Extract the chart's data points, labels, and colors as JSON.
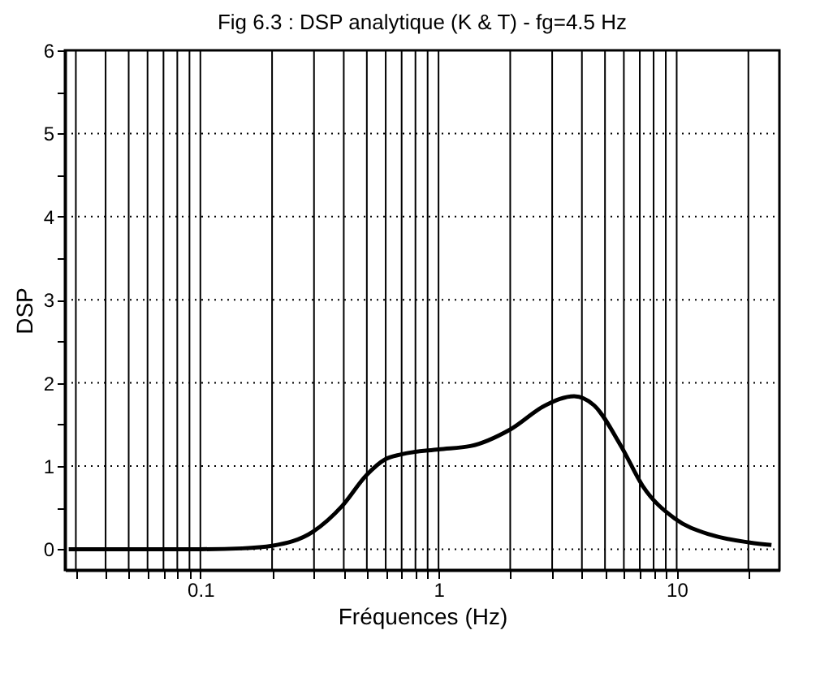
{
  "chart_data": {
    "type": "line",
    "title": "Fig 6.3 : DSP analytique (K & T) -  fg=4.5 Hz",
    "xlabel": "Fréquences (Hz)",
    "ylabel": "DSP",
    "log": "x",
    "grid": true,
    "marker": "none",
    "line_style": "solid",
    "xlim": [
      0.027,
      27
    ],
    "ylim": [
      -0.25,
      6
    ],
    "xticks": [
      {
        "value": 0.03,
        "label": null
      },
      {
        "value": 0.04,
        "label": null
      },
      {
        "value": 0.05,
        "label": null
      },
      {
        "value": 0.06,
        "label": null
      },
      {
        "value": 0.07,
        "label": null
      },
      {
        "value": 0.08,
        "label": null
      },
      {
        "value": 0.09,
        "label": null
      },
      0.1,
      {
        "value": 0.2,
        "label": null
      },
      {
        "value": 0.3,
        "label": null
      },
      {
        "value": 0.4,
        "label": null
      },
      {
        "value": 0.5,
        "label": null
      },
      {
        "value": 0.6,
        "label": null
      },
      {
        "value": 0.7,
        "label": null
      },
      {
        "value": 0.8,
        "label": null
      },
      {
        "value": 0.9,
        "label": null
      },
      1,
      {
        "value": 2,
        "label": null
      },
      {
        "value": 3,
        "label": null
      },
      {
        "value": 4,
        "label": null
      },
      {
        "value": 5,
        "label": null
      },
      {
        "value": 6,
        "label": null
      },
      {
        "value": 7,
        "label": null
      },
      {
        "value": 8,
        "label": null
      },
      {
        "value": 9,
        "label": null
      },
      10,
      {
        "value": 20,
        "label": null
      }
    ],
    "yticks": [
      0,
      {
        "value": 0.5,
        "label": null
      },
      1,
      {
        "value": 1.5,
        "label": null
      },
      2,
      {
        "value": 2.5,
        "label": null
      },
      3,
      {
        "value": 3.5,
        "label": null
      },
      4,
      {
        "value": 4.5,
        "label": null
      },
      5,
      {
        "value": 5.5,
        "label": null
      },
      6
    ],
    "series": [
      {
        "color": "#000000",
        "x": [
          0.028,
          0.1,
          0.15,
          0.2,
          0.297,
          0.394,
          0.498,
          0.597,
          0.697,
          1.0,
          1.36,
          2.0,
          2.81,
          3.71,
          4.5,
          5.84,
          7.2,
          9.8,
          14,
          20.3,
          25
        ],
        "values": [
          0,
          0,
          0.01,
          0.04,
          0.21,
          0.52,
          0.89,
          1.08,
          1.14,
          1.2,
          1.24,
          1.44,
          1.73,
          1.84,
          1.73,
          1.24,
          0.76,
          0.37,
          0.17,
          0.08,
          0.05
        ]
      }
    ]
  }
}
